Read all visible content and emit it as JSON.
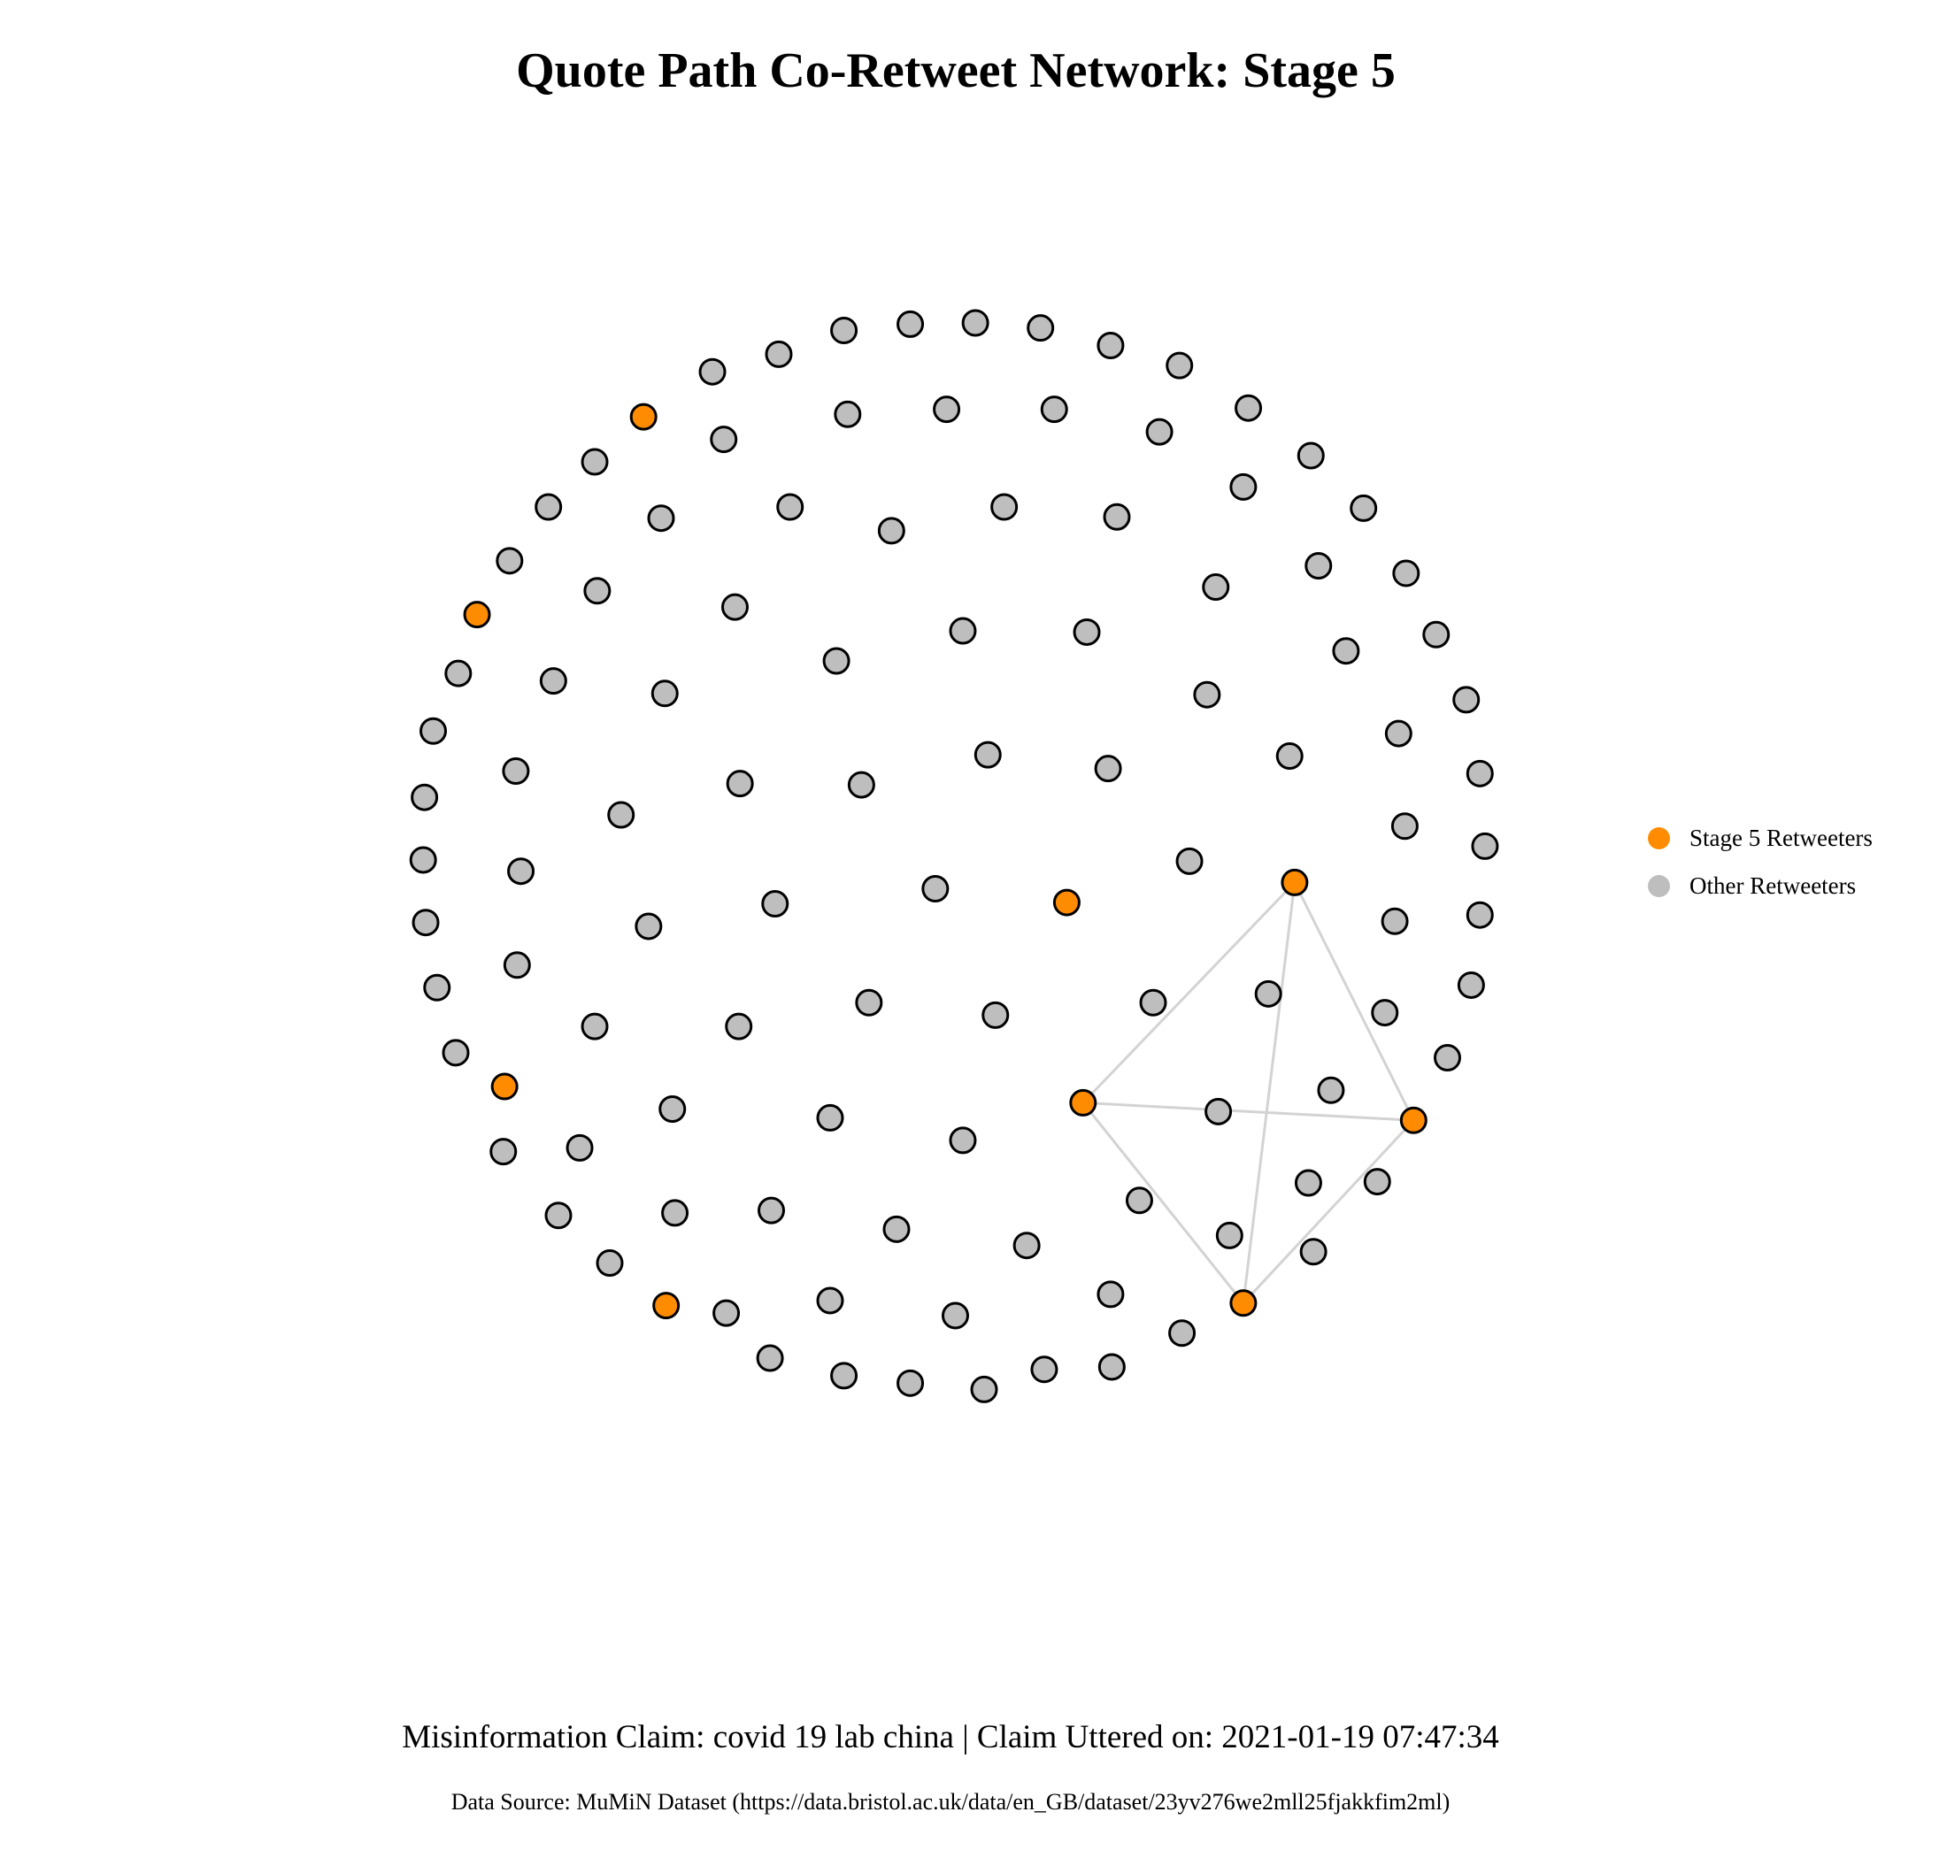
{
  "title": "Quote Path Co-Retweet Network: Stage 5",
  "colors": {
    "stage": "#FF8C00",
    "other": "#BEBEBE",
    "edge": "#D3D3D3",
    "stroke": "#000000"
  },
  "legend": [
    {
      "label": "Stage 5 Retweeters",
      "color": "#FF8C00"
    },
    {
      "label": "Other Retweeters",
      "color": "#BEBEBE"
    }
  ],
  "claim": "Misinformation Claim: covid 19 lab china | Claim Uttered on: 2021-01-19 07:47:34",
  "source": "Data Source: MuMiN Dataset (https://data.bristol.ac.uk/data/en_GB/dataset/23yv276we2mll25fjakkfim2ml)",
  "chart_data": {
    "type": "network",
    "stage5_node_count": 9,
    "other_node_count": 122,
    "edges": [
      [
        "s6",
        "s9"
      ],
      [
        "s6",
        "s7"
      ],
      [
        "s6",
        "s8"
      ],
      [
        "s9",
        "s7"
      ],
      [
        "s9",
        "s8"
      ],
      [
        "s7",
        "s8"
      ]
    ]
  }
}
